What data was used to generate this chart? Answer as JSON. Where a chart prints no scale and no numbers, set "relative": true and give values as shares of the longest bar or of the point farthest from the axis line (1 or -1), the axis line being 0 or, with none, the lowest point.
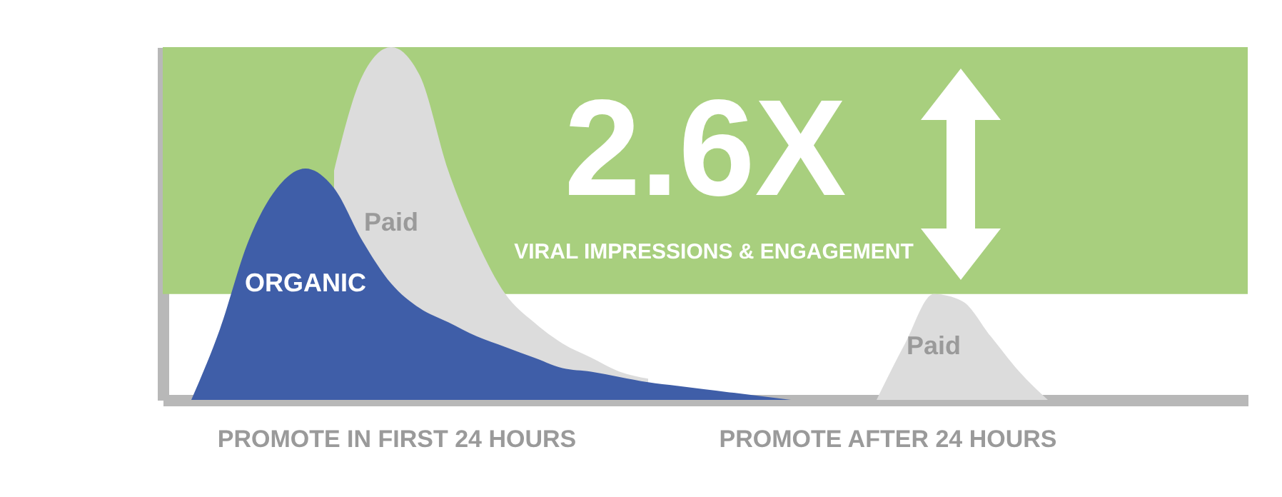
{
  "chart_data": {
    "type": "area",
    "relative": true,
    "categories": [
      null,
      null,
      null,
      null,
      null,
      null,
      null,
      null,
      null,
      null,
      null,
      null,
      null,
      null,
      null,
      null,
      null,
      null,
      null,
      null,
      null,
      null,
      null,
      null,
      null,
      null,
      null,
      null,
      null,
      null,
      null,
      null,
      null,
      null,
      null,
      null,
      null,
      null,
      null
    ],
    "series": [
      {
        "name": "Paid",
        "color": "#dcdcdc",
        "values": [
          null,
          null,
          null,
          null,
          null,
          null,
          0.65,
          0.92,
          1,
          0.92,
          0.65,
          0.45,
          0.3,
          0.22,
          0.16,
          0.12,
          0.08,
          0.06,
          null,
          null,
          null,
          null,
          null,
          null,
          null,
          null,
          null,
          null,
          null,
          null,
          null,
          null,
          null,
          null,
          null,
          null,
          null,
          null,
          null
        ]
      },
      {
        "name": "ORGANIC",
        "color": "#3f5ea8",
        "values": [
          null,
          0,
          0.2,
          0.45,
          0.6,
          0.656,
          0.6,
          0.45,
          0.33,
          0.26,
          0.22,
          0.18,
          0.15,
          0.12,
          0.09,
          0.08,
          0.065,
          0.05,
          0.04,
          0.03,
          0.02,
          0.01,
          0,
          null,
          null,
          null,
          null,
          null,
          null,
          null,
          null,
          null,
          null,
          null,
          null,
          null,
          null,
          null,
          null
        ]
      },
      {
        "name": "Paid",
        "color": "#dcdcdc",
        "values": [
          null,
          null,
          null,
          null,
          null,
          null,
          null,
          null,
          null,
          null,
          null,
          null,
          null,
          null,
          null,
          null,
          null,
          null,
          null,
          null,
          null,
          null,
          null,
          null,
          null,
          0,
          0.16,
          0.3,
          0.28,
          0.18,
          0.08,
          0,
          null,
          null,
          null,
          null,
          null,
          null,
          null
        ]
      }
    ],
    "bands": [
      {
        "axis": "y",
        "from": 0.3,
        "to": 1,
        "label": "2.6X",
        "color": "#a8cf7e"
      }
    ],
    "annotations": [
      "VIRAL IMPRESSIONS & ENGAGEMENT",
      "PROMOTE IN FIRST 24 HOURS",
      "PROMOTE AFTER 24 HOURS"
    ]
  }
}
